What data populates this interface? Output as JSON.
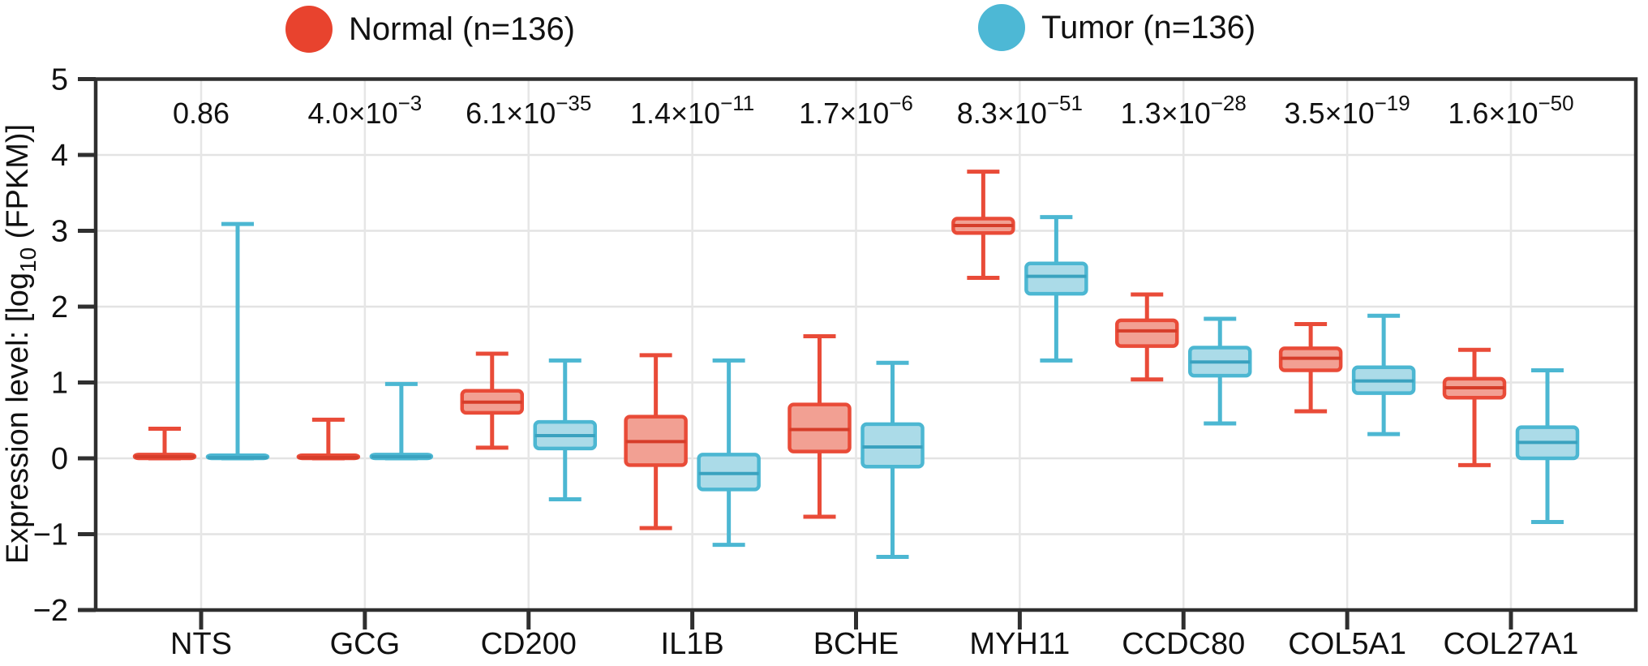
{
  "legend": {
    "items": [
      {
        "label": "Normal (n=136)",
        "color": "#e8432e"
      },
      {
        "label": "Tumor (n=136)",
        "color": "#4db8d5"
      }
    ]
  },
  "chart_data": {
    "type": "boxplot",
    "title": "",
    "ylabel_parts": {
      "pre": "Expression level: [log",
      "sub": "10",
      "post": " (FPKM)]"
    },
    "categories": [
      "NTS",
      "GCG",
      "CD200",
      "IL1B",
      "BCHE",
      "MYH11",
      "CCDC80",
      "COL5A1",
      "COL27A1"
    ],
    "p_values": [
      {
        "base": "0.86",
        "exp": ""
      },
      {
        "base": "4.0×10",
        "exp": "−3"
      },
      {
        "base": "6.1×10",
        "exp": "−35"
      },
      {
        "base": "1.4×10",
        "exp": "−11"
      },
      {
        "base": "1.7×10",
        "exp": "−6"
      },
      {
        "base": "8.3×10",
        "exp": "−51"
      },
      {
        "base": "1.3×10",
        "exp": "−28"
      },
      {
        "base": "3.5×10",
        "exp": "−19"
      },
      {
        "base": "1.6×10",
        "exp": "−50"
      }
    ],
    "ylim": [
      -2,
      5
    ],
    "yticks": [
      5,
      4,
      3,
      2,
      1,
      0,
      -1,
      -2
    ],
    "grid": true,
    "legend_position": "top",
    "series": [
      {
        "name": "Normal (n=136)",
        "stroke": "#e94b38",
        "fill": "#f2a093",
        "median_color": "#d63d2a",
        "boxes": [
          [
            0.0,
            0.0,
            0.02,
            0.05,
            0.39
          ],
          [
            0.0,
            0.0,
            0.01,
            0.04,
            0.51
          ],
          [
            0.14,
            0.6,
            0.74,
            0.89,
            1.38
          ],
          [
            -0.92,
            -0.09,
            0.22,
            0.55,
            1.36
          ],
          [
            -0.77,
            0.09,
            0.38,
            0.71,
            1.61
          ],
          [
            2.38,
            2.97,
            3.07,
            3.16,
            3.78
          ],
          [
            1.04,
            1.48,
            1.68,
            1.82,
            2.16
          ],
          [
            0.62,
            1.16,
            1.32,
            1.45,
            1.77
          ],
          [
            -0.09,
            0.8,
            0.93,
            1.05,
            1.43
          ]
        ]
      },
      {
        "name": "Tumor (n=136)",
        "stroke": "#4cb7d2",
        "fill": "#abdbe8",
        "median_color": "#3aa2bf",
        "boxes": [
          [
            0.0,
            0.0,
            0.01,
            0.04,
            3.09
          ],
          [
            0.0,
            0.0,
            0.02,
            0.05,
            0.98
          ],
          [
            -0.54,
            0.13,
            0.3,
            0.48,
            1.29
          ],
          [
            -1.14,
            -0.41,
            -0.2,
            0.05,
            1.29
          ],
          [
            -1.3,
            -0.11,
            0.15,
            0.45,
            1.26
          ],
          [
            1.29,
            2.17,
            2.4,
            2.57,
            3.18
          ],
          [
            0.46,
            1.09,
            1.27,
            1.46,
            1.84
          ],
          [
            0.32,
            0.86,
            1.02,
            1.2,
            1.88
          ],
          [
            -0.84,
            0.0,
            0.21,
            0.41,
            1.16
          ]
        ]
      }
    ]
  }
}
